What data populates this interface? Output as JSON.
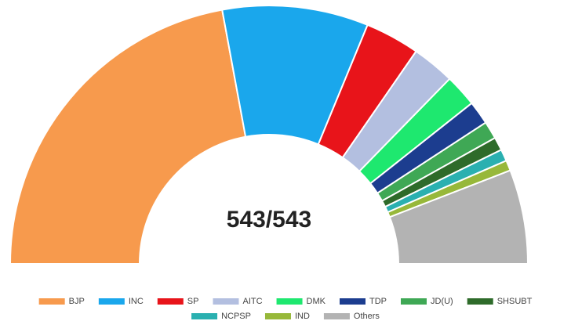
{
  "chart_data": {
    "type": "pie",
    "center_label": "543/543",
    "categories": [
      "BJP",
      "INC",
      "SP",
      "AITC",
      "DMK",
      "TDP",
      "JD(U)",
      "SHSUBT",
      "NCPSP",
      "IND",
      "Others"
    ],
    "values": [
      240,
      99,
      37,
      29,
      22,
      16,
      12,
      9,
      8,
      7,
      64
    ],
    "colors": [
      "#f79a4d",
      "#1aa7ec",
      "#e8141a",
      "#b3bfe0",
      "#1ee86f",
      "#1c3d8f",
      "#3fa855",
      "#2e6b2a",
      "#2ab0b0",
      "#97b83a",
      "#b3b3b3"
    ],
    "legend": "bottom"
  }
}
